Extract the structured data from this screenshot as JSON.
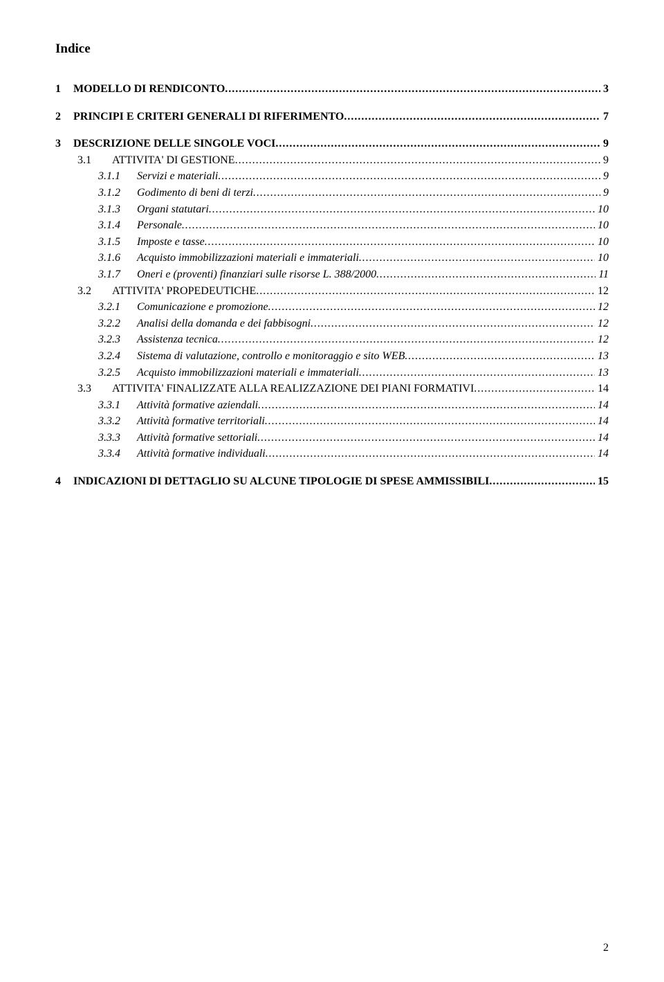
{
  "title": "Indice",
  "page_number": "2",
  "colors": {
    "background": "#ffffff",
    "text": "#000000"
  },
  "typography": {
    "title_fontsize_pt": 14,
    "body_fontsize_pt": 12,
    "font_family": "Times New Roman"
  },
  "entries": [
    {
      "level": 1,
      "num": "1",
      "label": "MODELLO DI RENDICONTO",
      "page": "3"
    },
    {
      "level": 1,
      "num": "2",
      "label": "PRINCIPI E CRITERI GENERALI DI RIFERIMENTO",
      "page": "7"
    },
    {
      "level": 1,
      "num": "3",
      "label": "DESCRIZIONE DELLE SINGOLE VOCI",
      "page": "9"
    },
    {
      "level": 2,
      "num": "3.1",
      "label": "ATTIVITA' DI GESTIONE",
      "page": "9"
    },
    {
      "level": 3,
      "num": "3.1.1",
      "label": "Servizi e materiali",
      "page": "9"
    },
    {
      "level": 3,
      "num": "3.1.2",
      "label": "Godimento di beni di terzi",
      "page": "9"
    },
    {
      "level": 3,
      "num": "3.1.3",
      "label": "Organi statutari",
      "page": "10"
    },
    {
      "level": 3,
      "num": "3.1.4",
      "label": "Personale",
      "page": "10"
    },
    {
      "level": 3,
      "num": "3.1.5",
      "label": "Imposte e tasse",
      "page": "10"
    },
    {
      "level": 3,
      "num": "3.1.6",
      "label": "Acquisto immobilizzazioni materiali e immateriali",
      "page": "10"
    },
    {
      "level": 3,
      "num": "3.1.7",
      "label": "Oneri e (proventi) finanziari sulle risorse L. 388/2000",
      "page": "11"
    },
    {
      "level": 2,
      "num": "3.2",
      "label": "ATTIVITA' PROPEDEUTICHE",
      "page": "12"
    },
    {
      "level": 3,
      "num": "3.2.1",
      "label": "Comunicazione e promozione",
      "page": "12"
    },
    {
      "level": 3,
      "num": "3.2.2",
      "label": "Analisi della domanda e dei fabbisogni",
      "page": "12"
    },
    {
      "level": 3,
      "num": "3.2.3",
      "label": "Assistenza tecnica",
      "page": "12"
    },
    {
      "level": 3,
      "num": "3.2.4",
      "label": "Sistema di valutazione, controllo e monitoraggio e sito WEB",
      "page": "13"
    },
    {
      "level": 3,
      "num": "3.2.5",
      "label": "Acquisto immobilizzazioni materiali e immateriali",
      "page": "13"
    },
    {
      "level": 2,
      "num": "3.3",
      "label": "ATTIVITA' FINALIZZATE ALLA REALIZZAZIONE DEI PIANI FORMATIVI",
      "page": "14"
    },
    {
      "level": 3,
      "num": "3.3.1",
      "label": "Attività formative aziendali",
      "page": "14"
    },
    {
      "level": 3,
      "num": "3.3.2",
      "label": "Attività formative territoriali",
      "page": "14"
    },
    {
      "level": 3,
      "num": "3.3.3",
      "label": "Attività formative settoriali",
      "page": "14"
    },
    {
      "level": 3,
      "num": "3.3.4",
      "label": "Attività formative individuali",
      "page": "14"
    },
    {
      "level": 1,
      "num": "4",
      "label": "INDICAZIONI DI DETTAGLIO SU ALCUNE TIPOLOGIE DI SPESE AMMISSIBILI",
      "page": "15"
    }
  ]
}
